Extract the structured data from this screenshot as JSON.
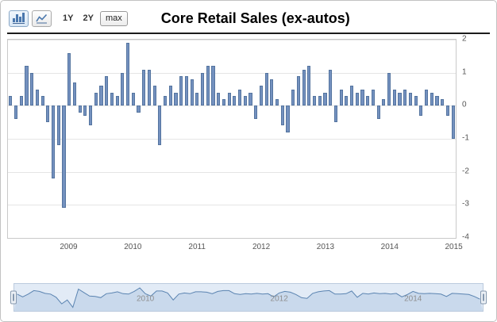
{
  "header": {
    "title": "Core Retail Sales (ex-autos)"
  },
  "toolbar": {
    "chart_type_selected": "bar",
    "icons": [
      "bar-chart-icon",
      "line-chart-icon"
    ],
    "range_buttons": [
      "1Y",
      "2Y",
      "max"
    ]
  },
  "colors": {
    "bar_fill": "#7491bf",
    "bar_border": "#54749f",
    "gridline": "#e5e5e5",
    "navigator_band": "#e2ebf6",
    "navigator_area": "#c9d9ec",
    "navigator_line": "#5b84b1"
  },
  "chart_data": {
    "type": "bar",
    "title": "Core Retail Sales (ex-autos)",
    "ylabel": "",
    "xlabel": "",
    "ylim": [
      -4,
      2
    ],
    "yticks": [
      2,
      1,
      0,
      -1,
      -2,
      -3,
      -4
    ],
    "xticks": [
      "2009",
      "2010",
      "2011",
      "2012",
      "2013",
      "2014",
      "2015"
    ],
    "grid": true,
    "months": [
      "2008-02",
      "2008-03",
      "2008-04",
      "2008-05",
      "2008-06",
      "2008-07",
      "2008-08",
      "2008-09",
      "2008-10",
      "2008-11",
      "2008-12",
      "2009-01",
      "2009-02",
      "2009-03",
      "2009-04",
      "2009-05",
      "2009-06",
      "2009-07",
      "2009-08",
      "2009-09",
      "2009-10",
      "2009-11",
      "2009-12",
      "2010-01",
      "2010-02",
      "2010-03",
      "2010-04",
      "2010-05",
      "2010-06",
      "2010-07",
      "2010-08",
      "2010-09",
      "2010-10",
      "2010-11",
      "2010-12",
      "2011-01",
      "2011-02",
      "2011-03",
      "2011-04",
      "2011-05",
      "2011-06",
      "2011-07",
      "2011-08",
      "2011-09",
      "2011-10",
      "2011-11",
      "2011-12",
      "2012-01",
      "2012-02",
      "2012-03",
      "2012-04",
      "2012-05",
      "2012-06",
      "2012-07",
      "2012-08",
      "2012-09",
      "2012-10",
      "2012-11",
      "2012-12",
      "2013-01",
      "2013-02",
      "2013-03",
      "2013-04",
      "2013-05",
      "2013-06",
      "2013-07",
      "2013-08",
      "2013-09",
      "2013-10",
      "2013-11",
      "2013-12",
      "2014-01",
      "2014-02",
      "2014-03",
      "2014-04",
      "2014-05",
      "2014-06",
      "2014-07",
      "2014-08",
      "2014-09",
      "2014-10",
      "2014-11",
      "2014-12",
      "2015-01"
    ],
    "values": [
      0.3,
      -0.4,
      0.3,
      1.2,
      1.0,
      0.5,
      0.3,
      -0.5,
      -2.2,
      -1.2,
      -3.1,
      1.6,
      0.7,
      -0.2,
      -0.3,
      -0.6,
      0.4,
      0.6,
      0.9,
      0.4,
      0.3,
      1.0,
      1.9,
      0.4,
      -0.2,
      1.1,
      1.1,
      0.6,
      -1.2,
      0.3,
      0.6,
      0.4,
      0.9,
      0.9,
      0.8,
      0.4,
      1.0,
      1.2,
      1.2,
      0.4,
      0.2,
      0.4,
      0.3,
      0.5,
      0.3,
      0.4,
      -0.4,
      0.6,
      1.0,
      0.8,
      0.2,
      -0.6,
      -0.8,
      0.5,
      0.9,
      1.1,
      1.2,
      0.3,
      0.3,
      0.4,
      1.1,
      -0.5,
      0.5,
      0.3,
      0.6,
      0.4,
      0.5,
      0.3,
      0.5,
      -0.4,
      0.2,
      1.0,
      0.5,
      0.4,
      0.5,
      0.4,
      0.3,
      -0.3,
      0.5,
      0.4,
      0.3,
      0.2,
      -0.3,
      -1.0
    ]
  },
  "navigator": {
    "labels": [
      "2010",
      "2012",
      "2014"
    ],
    "label_months": [
      "2010-01",
      "2012-01",
      "2014-01"
    ]
  }
}
